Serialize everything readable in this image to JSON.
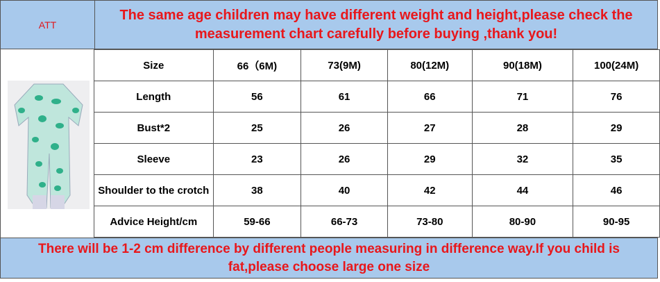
{
  "header": {
    "brand": "ATT",
    "notice": "The same age children may have different weight and height,please check the measurement chart carefully before buying ,thank you!"
  },
  "table": {
    "columns": [
      "Size",
      "66（6M)",
      "73(9M)",
      "80(12M)",
      "90(18M)",
      "100(24M)"
    ],
    "rows": [
      [
        "Length",
        56,
        61,
        66,
        71,
        76
      ],
      [
        "Bust*2",
        25,
        26,
        27,
        28,
        29
      ],
      [
        "Sleeve",
        23,
        26,
        29,
        32,
        35
      ],
      [
        "Shoulder to the crotch",
        38,
        40,
        42,
        44,
        46
      ],
      [
        "Advice Height/cm",
        "59-66",
        "66-73",
        "73-80",
        "80-90",
        "90-95"
      ]
    ]
  },
  "footer": {
    "notice": "There will be 1-2 cm difference by different people measuring in difference way.If you child is fat,please choose large one size"
  }
}
